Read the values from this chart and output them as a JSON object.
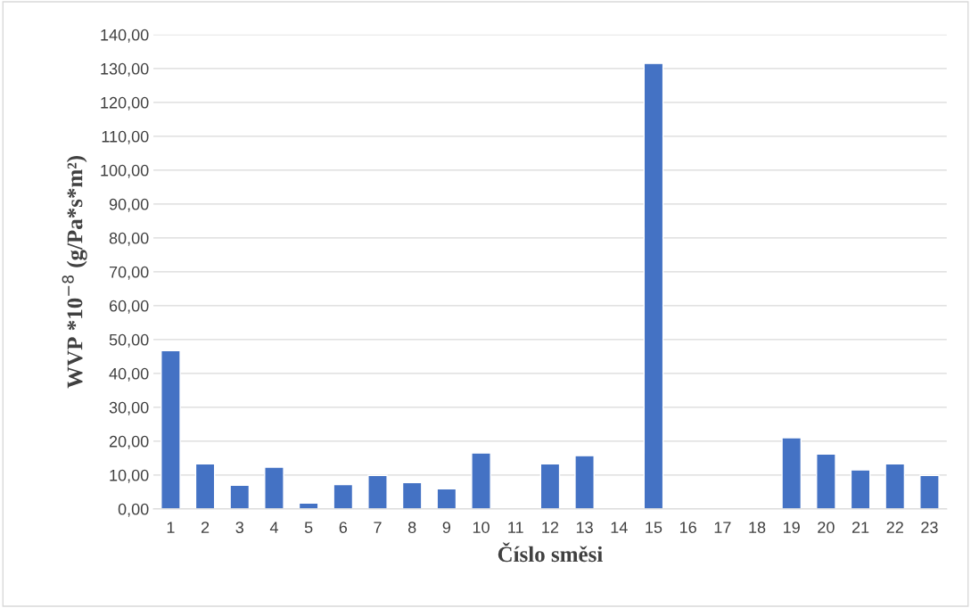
{
  "chart_data": {
    "type": "bar",
    "xlabel": "Číslo směsi",
    "ylabel": "WVP *10$^{−8}$ (g/Pa*s*m²)",
    "categories": [
      "1",
      "2",
      "3",
      "4",
      "5",
      "6",
      "7",
      "8",
      "9",
      "10",
      "11",
      "12",
      "13",
      "14",
      "15",
      "16",
      "17",
      "18",
      "19",
      "20",
      "21",
      "22",
      "23"
    ],
    "values": [
      46.7,
      13.3,
      7.0,
      12.3,
      1.7,
      7.2,
      9.9,
      7.8,
      5.9,
      16.5,
      null,
      13.3,
      15.7,
      null,
      131.5,
      null,
      null,
      null,
      21.0,
      16.2,
      11.5,
      13.3,
      9.9
    ],
    "color": "#4472c4",
    "ylim": [
      0,
      140
    ],
    "yticks": [
      {
        "value": 0,
        "label": "0,00"
      },
      {
        "value": 10,
        "label": "10,00"
      },
      {
        "value": 20,
        "label": "20,00"
      },
      {
        "value": 30,
        "label": "30,00"
      },
      {
        "value": 40,
        "label": "40,00"
      },
      {
        "value": 50,
        "label": "50,00"
      },
      {
        "value": 60,
        "label": "60,00"
      },
      {
        "value": 70,
        "label": "70,00"
      },
      {
        "value": 80,
        "label": "80,00"
      },
      {
        "value": 90,
        "label": "90,00"
      },
      {
        "value": 100,
        "label": "100,00"
      },
      {
        "value": 110,
        "label": "110,00"
      },
      {
        "value": 120,
        "label": "120,00"
      },
      {
        "value": 130,
        "label": "130,00"
      },
      {
        "value": 140,
        "label": "140,00"
      }
    ],
    "grid": "y"
  }
}
